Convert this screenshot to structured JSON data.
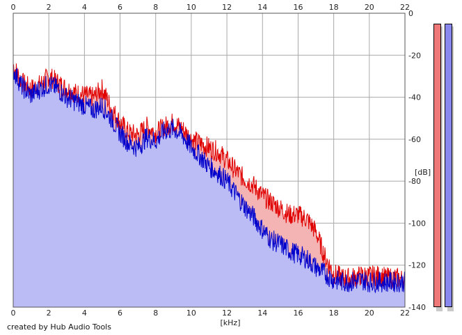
{
  "credit": "created by Hub Audio Tools",
  "chart_data": {
    "type": "area",
    "xlabel": "[kHz]",
    "ylabel": "[dB]",
    "xlim": [
      0,
      22
    ],
    "ylim": [
      -140,
      0
    ],
    "x_ticks": [
      "0",
      "2",
      "4",
      "6",
      "8",
      "10",
      "12",
      "14",
      "16",
      "18",
      "20",
      "22"
    ],
    "y_ticks": [
      "0",
      "-20",
      "-40",
      "-60",
      "-80",
      "-100",
      "-120",
      "-140"
    ],
    "grid": true,
    "series": [
      {
        "color": "#e00000",
        "fill": "#f5b4b4",
        "x": [
          0,
          0.5,
          1,
          1.5,
          2,
          2.5,
          3,
          3.5,
          4,
          4.5,
          5,
          5.5,
          6,
          6.5,
          7,
          7.5,
          8,
          8.5,
          9,
          9.5,
          10,
          10.5,
          11,
          11.5,
          12,
          12.5,
          13,
          13.5,
          14,
          14.5,
          15,
          15.5,
          16,
          16.5,
          17,
          17.5,
          18,
          18.5,
          19,
          19.5,
          20,
          20.5,
          21,
          21.5,
          22
        ],
        "values": [
          -25,
          -33,
          -36,
          -34,
          -30,
          -33,
          -36,
          -38,
          -39,
          -40,
          -36,
          -45,
          -52,
          -57,
          -58,
          -54,
          -57,
          -54,
          -52,
          -55,
          -60,
          -62,
          -64,
          -66,
          -70,
          -75,
          -79,
          -82,
          -87,
          -90,
          -93,
          -96,
          -96,
          -98,
          -104,
          -116,
          -124,
          -126,
          -126,
          -125,
          -125,
          -125,
          -126,
          -126,
          -127
        ]
      },
      {
        "color": "#0000cc",
        "fill": "#bbbbf6",
        "x": [
          0,
          0.5,
          1,
          1.5,
          2,
          2.5,
          3,
          3.5,
          4,
          4.5,
          5,
          5.5,
          6,
          6.5,
          7,
          7.5,
          8,
          8.5,
          9,
          9.5,
          10,
          10.5,
          11,
          11.5,
          12,
          12.5,
          13,
          13.5,
          14,
          14.5,
          15,
          15.5,
          16,
          16.5,
          17,
          17.5,
          18,
          18.5,
          19,
          19.5,
          20,
          20.5,
          21,
          21.5,
          22
        ],
        "values": [
          -27,
          -35,
          -39,
          -36,
          -34,
          -36,
          -40,
          -42,
          -44,
          -46,
          -44,
          -50,
          -57,
          -62,
          -64,
          -59,
          -61,
          -56,
          -55,
          -58,
          -64,
          -68,
          -73,
          -76,
          -80,
          -86,
          -92,
          -97,
          -103,
          -108,
          -110,
          -113,
          -115,
          -117,
          -121,
          -124,
          -127,
          -128,
          -128,
          -127,
          -128,
          -128,
          -128,
          -128,
          -128
        ]
      }
    ]
  },
  "meters": {
    "left": {
      "color": "#ee7777",
      "level": 1.0
    },
    "right": {
      "color": "#8888ee",
      "level": 1.0
    }
  }
}
